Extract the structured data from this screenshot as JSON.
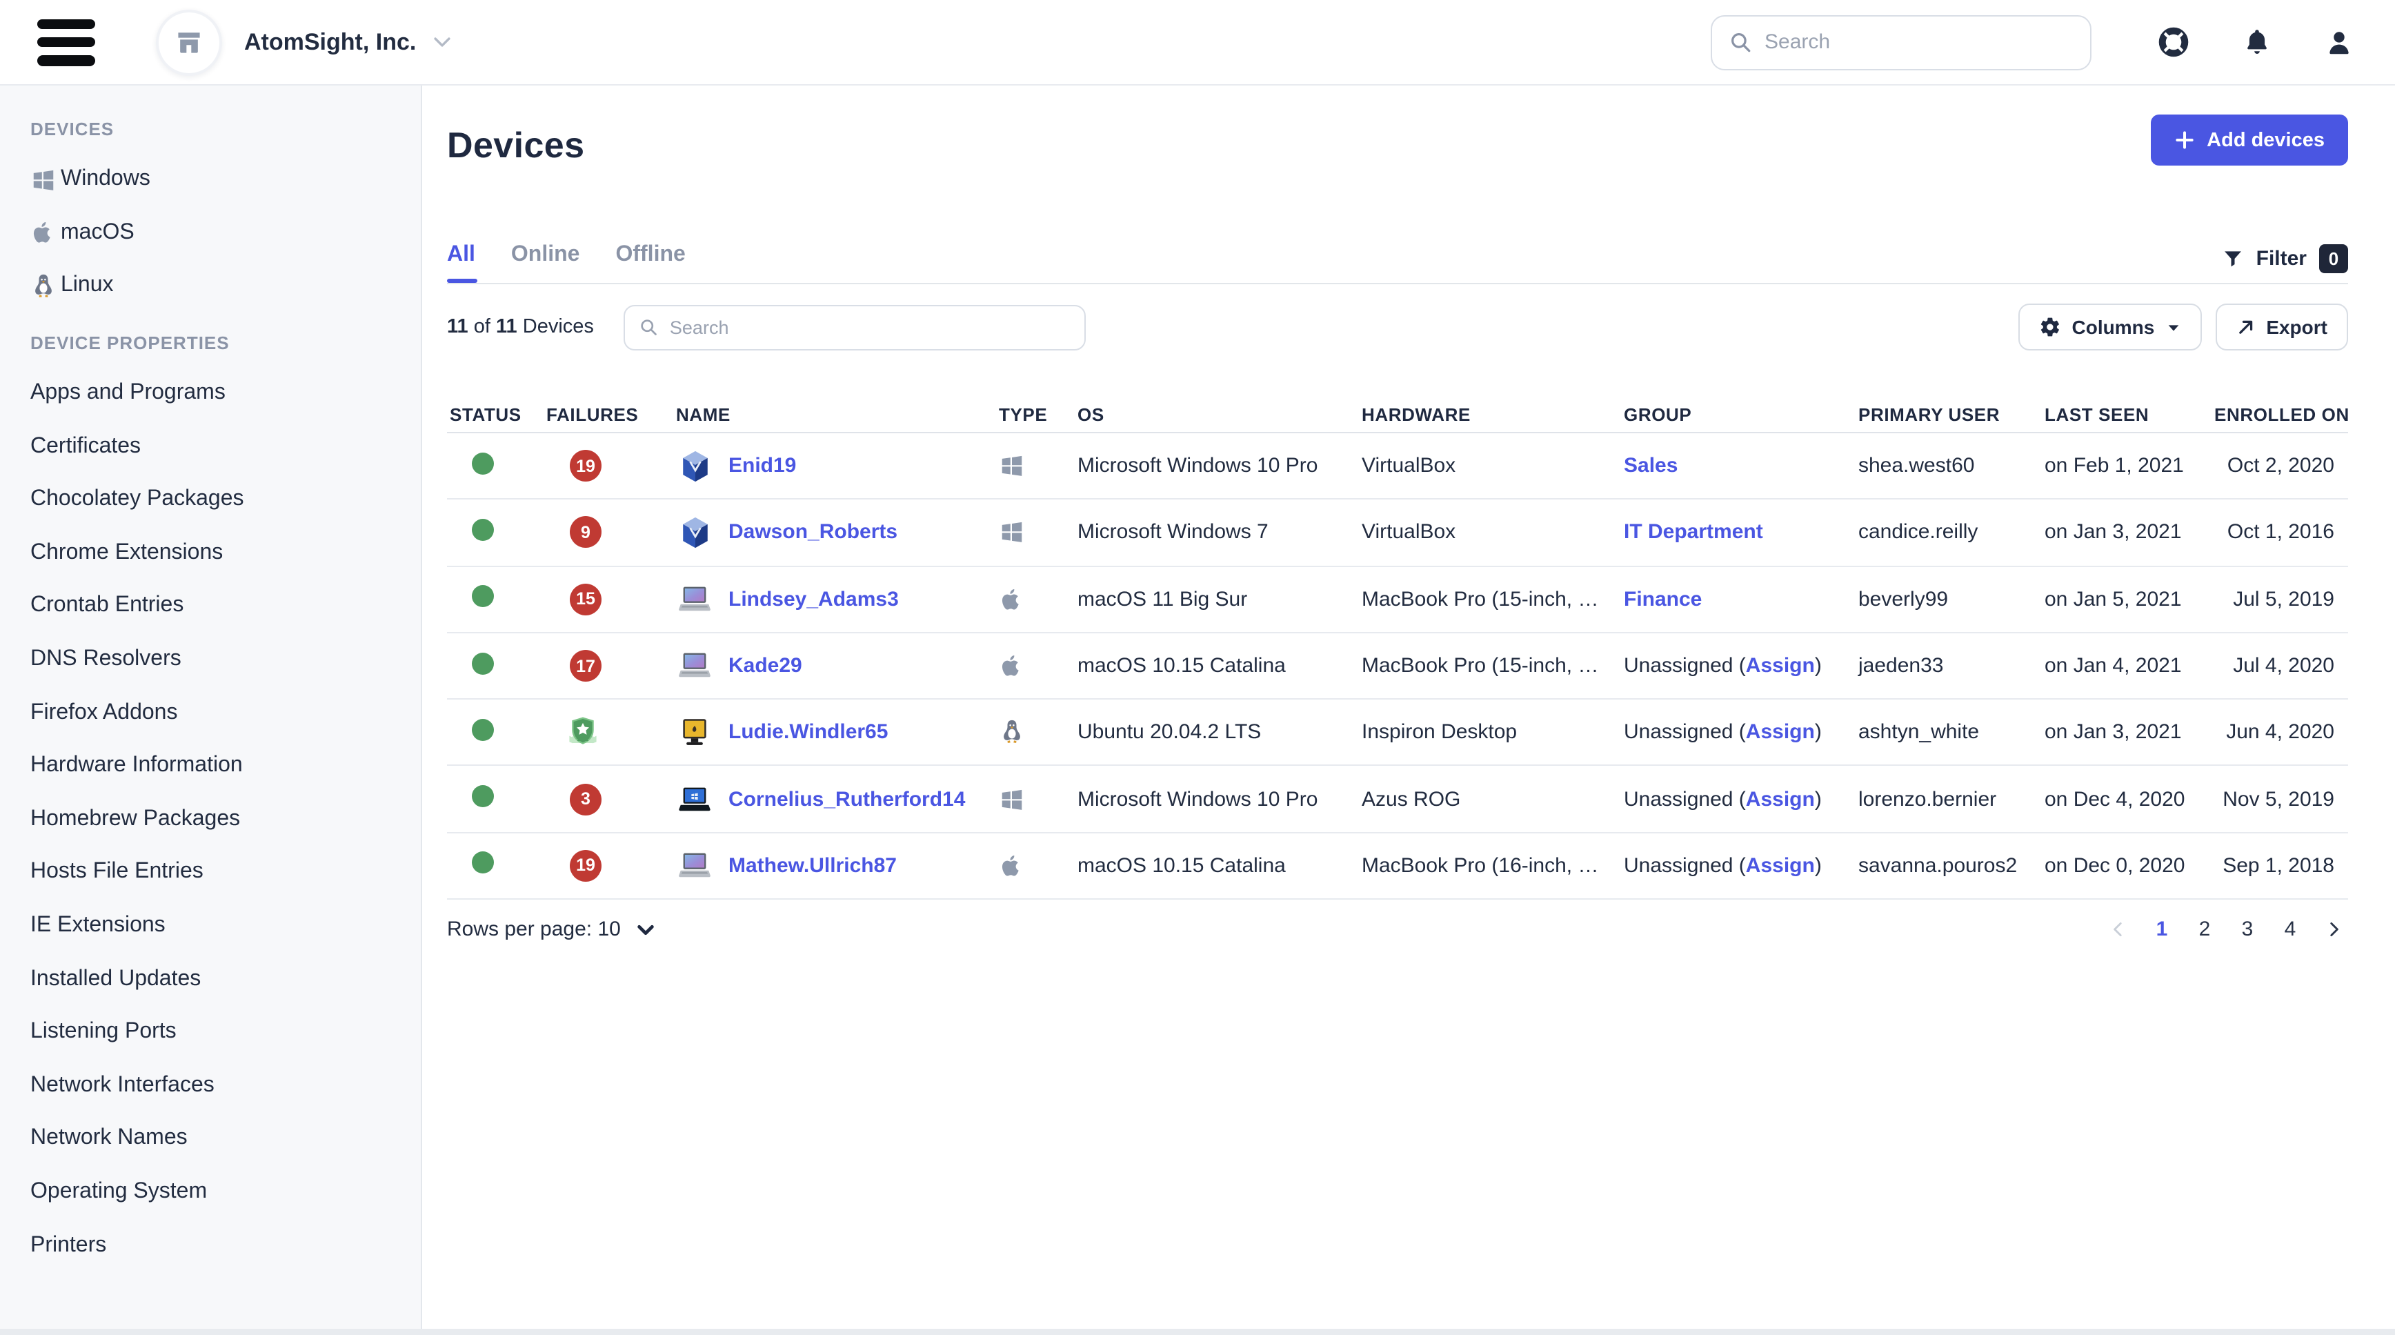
{
  "colors": {
    "accent": "#4a56e2",
    "status_green": "#4e9b5f",
    "failure_red": "#c03a33",
    "badge_navy": "#1f2638"
  },
  "header": {
    "org_name": "AtomSight, Inc.",
    "search_placeholder": "Search",
    "icons": [
      "help-icon",
      "notifications-icon",
      "account-icon"
    ]
  },
  "sidebar": {
    "sections": [
      {
        "label": "DEVICES",
        "items": [
          {
            "label": "Windows",
            "icon": "windows"
          },
          {
            "label": "macOS",
            "icon": "apple"
          },
          {
            "label": "Linux",
            "icon": "linux"
          }
        ]
      },
      {
        "label": "DEVICE PROPERTIES",
        "items": [
          {
            "label": "Apps and Programs"
          },
          {
            "label": "Certificates"
          },
          {
            "label": "Chocolatey Packages"
          },
          {
            "label": "Chrome Extensions"
          },
          {
            "label": "Crontab Entries"
          },
          {
            "label": "DNS Resolvers"
          },
          {
            "label": "Firefox Addons"
          },
          {
            "label": "Hardware Information"
          },
          {
            "label": "Homebrew Packages"
          },
          {
            "label": "Hosts File Entries"
          },
          {
            "label": "IE Extensions"
          },
          {
            "label": "Installed Updates"
          },
          {
            "label": "Listening Ports"
          },
          {
            "label": "Network Interfaces"
          },
          {
            "label": "Network Names"
          },
          {
            "label": "Operating System"
          },
          {
            "label": "Printers"
          }
        ]
      }
    ]
  },
  "main": {
    "title": "Devices",
    "add_button": "Add devices",
    "tabs": [
      {
        "label": "All",
        "active": true
      },
      {
        "label": "Online",
        "active": false
      },
      {
        "label": "Offline",
        "active": false
      }
    ],
    "count": {
      "shown": "11",
      "of_text": "of",
      "total": "11",
      "label": "Devices"
    },
    "table_search_placeholder": "Search",
    "filter": {
      "label": "Filter",
      "count": "0"
    },
    "columns_button": "Columns",
    "export_button": "Export",
    "table": {
      "headers": [
        "STATUS",
        "FAILURES",
        "NAME",
        "TYPE",
        "OS",
        "HARDWARE",
        "GROUP",
        "PRIMARY USER",
        "LAST SEEN",
        "ENROLLED ON"
      ],
      "rows": [
        {
          "status": "online",
          "failures": {
            "count": "19"
          },
          "name": "Enid19",
          "device_icon": "virtualbox",
          "type_icon": "windows",
          "os": "Microsoft Windows 10 Pro",
          "hardware": "VirtualBox",
          "group": {
            "team": "Sales"
          },
          "primary_user": "shea.west60",
          "last_seen": "on Feb 1, 2021",
          "enrolled_on": "Oct 2, 2020"
        },
        {
          "status": "online",
          "failures": {
            "count": "9"
          },
          "name": "Dawson_Roberts",
          "device_icon": "virtualbox",
          "type_icon": "windows",
          "os": "Microsoft Windows 7",
          "hardware": "VirtualBox",
          "group": {
            "team": "IT Department"
          },
          "primary_user": "candice.reilly",
          "last_seen": "on Jan 3, 2021",
          "enrolled_on": "Oct 1, 2016"
        },
        {
          "status": "online",
          "failures": {
            "count": "15"
          },
          "name": "Lindsey_Adams3",
          "device_icon": "macbook",
          "type_icon": "apple",
          "os": "macOS 11 Big Sur",
          "hardware": "MacBook Pro (15-inch, …",
          "group": {
            "team": "Finance"
          },
          "primary_user": "beverly99",
          "last_seen": "on Jan 5, 2021",
          "enrolled_on": "Jul 5, 2019"
        },
        {
          "status": "online",
          "failures": {
            "count": "17"
          },
          "name": "Kade29",
          "device_icon": "macbook",
          "type_icon": "apple",
          "os": "macOS 10.15 Catalina",
          "hardware": "MacBook Pro (15-inch, …",
          "group": {
            "unassigned_prefix": "Unassigned (",
            "assign_link": "Assign",
            "suffix": ")"
          },
          "primary_user": "jaeden33",
          "last_seen": "on Jan 4, 2021",
          "enrolled_on": "Jul 4, 2020"
        },
        {
          "status": "online",
          "failures": {
            "passing": true
          },
          "name": "Ludie.Windler65",
          "device_icon": "desktop",
          "type_icon": "linux",
          "os": "Ubuntu 20.04.2 LTS",
          "hardware": "Inspiron Desktop",
          "group": {
            "unassigned_prefix": "Unassigned (",
            "assign_link": "Assign",
            "suffix": ")"
          },
          "primary_user": "ashtyn_white",
          "last_seen": "on Jan 3, 2021",
          "enrolled_on": "Jun 4, 2020"
        },
        {
          "status": "online",
          "failures": {
            "count": "3"
          },
          "name": "Cornelius_Rutherford14",
          "device_icon": "laptop-win",
          "type_icon": "windows",
          "os": "Microsoft Windows 10 Pro",
          "hardware": "Azus ROG",
          "group": {
            "unassigned_prefix": "Unassigned (",
            "assign_link": "Assign",
            "suffix": ")"
          },
          "primary_user": "lorenzo.bernier",
          "last_seen": "on Dec 4, 2020",
          "enrolled_on": "Nov 5, 2019"
        },
        {
          "status": "online",
          "failures": {
            "count": "19"
          },
          "name": "Mathew.Ullrich87",
          "device_icon": "macbook",
          "type_icon": "apple",
          "os": "macOS 10.15 Catalina",
          "hardware": "MacBook Pro (16-inch, …",
          "group": {
            "unassigned_prefix": "Unassigned (",
            "assign_link": "Assign",
            "suffix": ")"
          },
          "primary_user": "savanna.pouros2",
          "last_seen": "on Dec 0, 2020",
          "enrolled_on": "Sep 1, 2018"
        }
      ]
    },
    "pagination": {
      "rows_per_page_label": "Rows per page:",
      "rows_per_page": "10",
      "pages": [
        "1",
        "2",
        "3",
        "4"
      ],
      "active_page": "1"
    }
  }
}
